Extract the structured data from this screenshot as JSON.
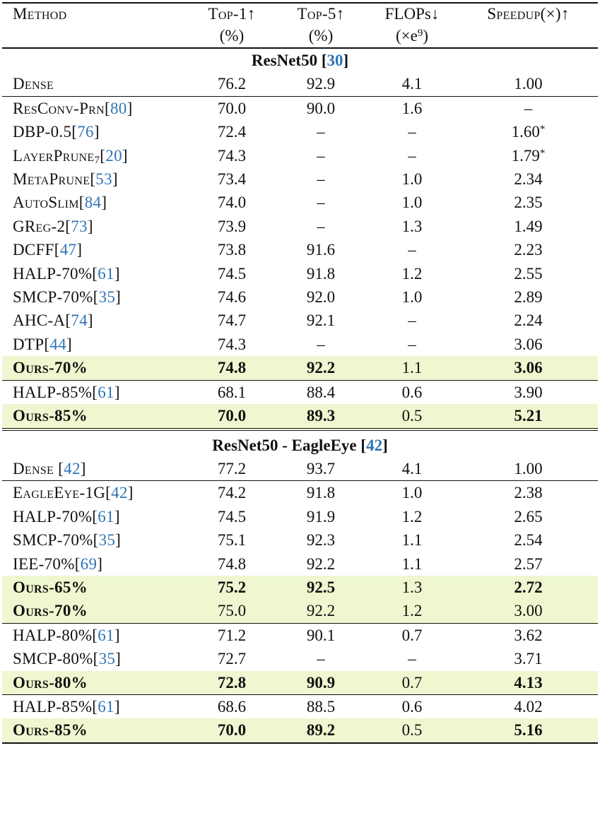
{
  "header": {
    "method": "Method",
    "top1": "Top-1↑",
    "top1_unit": "(%)",
    "top5": "Top-5↑",
    "top5_unit": "(%)",
    "flops": "FLOPs↓",
    "flops_unit_pre": "(×e",
    "flops_unit_exp": "9",
    "flops_unit_post": ")",
    "speedup": "Speedup(×)↑"
  },
  "section1": {
    "title": "ResNet50 [",
    "cite": "30",
    "close": "]"
  },
  "section2": {
    "title": "ResNet50 - EagleEye [",
    "cite": "42",
    "close": "]"
  },
  "rows": {
    "r1": {
      "name": "Dense",
      "cite": "",
      "top1": "76.2",
      "top5": "92.9",
      "flops": "4.1",
      "speed": "1.00"
    },
    "r2": {
      "name": "ResConv-Prn",
      "cite": "80",
      "top1": "70.0",
      "top5": "90.0",
      "flops": "1.6",
      "speed": "–"
    },
    "r3": {
      "name": "DBP-0.5",
      "cite": "76",
      "top1": "72.4",
      "top5": "–",
      "flops": "–",
      "speed": "1.60",
      "mark": "*"
    },
    "r4": {
      "name": "LayerPrune",
      "sub": "7",
      "cite": "20",
      "top1": "74.3",
      "top5": "–",
      "flops": "–",
      "speed": "1.79",
      "mark": "*"
    },
    "r5": {
      "name": "MetaPrune",
      "cite": "53",
      "top1": "73.4",
      "top5": "–",
      "flops": "1.0",
      "speed": "2.34"
    },
    "r6": {
      "name": "AutoSlim",
      "cite": "84",
      "top1": "74.0",
      "top5": "–",
      "flops": "1.0",
      "speed": "2.35"
    },
    "r7": {
      "name": "GReg-2",
      "cite": "73",
      "top1": "73.9",
      "top5": "–",
      "flops": "1.3",
      "speed": "1.49"
    },
    "r8": {
      "name": "DCFF",
      "cite": "47",
      "top1": "73.8",
      "top5": "91.6",
      "flops": "–",
      "speed": "2.23"
    },
    "r9": {
      "name": "HALP-70%",
      "cite": "61",
      "top1": "74.5",
      "top5": "91.8",
      "flops": "1.2",
      "speed": "2.55"
    },
    "r10": {
      "name": "SMCP-70%",
      "cite": "35",
      "top1": "74.6",
      "top5": "92.0",
      "flops": "1.0",
      "speed": "2.89"
    },
    "r11": {
      "name": "AHC-A",
      "cite": "74",
      "top1": "74.7",
      "top5": "92.1",
      "flops": "–",
      "speed": "2.24"
    },
    "r12": {
      "name": "DTP",
      "cite": "44",
      "top1": "74.3",
      "top5": "–",
      "flops": "–",
      "speed": "3.06"
    },
    "r13": {
      "name": "Ours-70%",
      "cite": "",
      "top1": "74.8",
      "top5": "92.2",
      "flops": "1.1",
      "speed": "3.06"
    },
    "r14": {
      "name": "HALP-85%",
      "cite": "61",
      "top1": "68.1",
      "top5": "88.4",
      "flops": "0.6",
      "speed": "3.90"
    },
    "r15": {
      "name": "Ours-85%",
      "cite": "",
      "top1": "70.0",
      "top5": "89.3",
      "flops": "0.5",
      "speed": "5.21"
    },
    "s1": {
      "name": "Dense ",
      "cite": "42",
      "top1": "77.2",
      "top5": "93.7",
      "flops": "4.1",
      "speed": "1.00"
    },
    "s2": {
      "name": "EagleEye-1G",
      "cite": "42",
      "top1": "74.2",
      "top5": "91.8",
      "flops": "1.0",
      "speed": "2.38"
    },
    "s3": {
      "name": "HALP-70%",
      "cite": "61",
      "top1": "74.5",
      "top5": "91.9",
      "flops": "1.2",
      "speed": "2.65"
    },
    "s4": {
      "name": "SMCP-70%",
      "cite": "35",
      "top1": "75.1",
      "top5": "92.3",
      "flops": "1.1",
      "speed": "2.54"
    },
    "s5": {
      "name": "IEE-70%",
      "cite": "69",
      "top1": "74.8",
      "top5": "92.2",
      "flops": "1.1",
      "speed": "2.57"
    },
    "s6": {
      "name": "Ours-65%",
      "cite": "",
      "top1": "75.2",
      "top5": "92.5",
      "flops": "1.3",
      "speed": "2.72"
    },
    "s7": {
      "name": "Ours-70%",
      "cite": "",
      "top1": "75.0",
      "top5": "92.2",
      "flops": "1.2",
      "speed": "3.00"
    },
    "s8": {
      "name": "HALP-80%",
      "cite": "61",
      "top1": "71.2",
      "top5": "90.1",
      "flops": "0.7",
      "speed": "3.62"
    },
    "s9": {
      "name": "SMCP-80%",
      "cite": "35",
      "top1": "72.7",
      "top5": "–",
      "flops": "–",
      "speed": "3.71"
    },
    "s10": {
      "name": "Ours-80%",
      "cite": "",
      "top1": "72.8",
      "top5": "90.9",
      "flops": "0.7",
      "speed": "4.13"
    },
    "s11": {
      "name": "HALP-85%",
      "cite": "61",
      "top1": "68.6",
      "top5": "88.5",
      "flops": "0.6",
      "speed": "4.02"
    },
    "s12": {
      "name": "Ours-85%",
      "cite": "",
      "top1": "70.0",
      "top5": "89.2",
      "flops": "0.5",
      "speed": "5.16"
    }
  },
  "colors": {
    "highlight": "#eef7cf",
    "citation": "#2f74b5"
  }
}
